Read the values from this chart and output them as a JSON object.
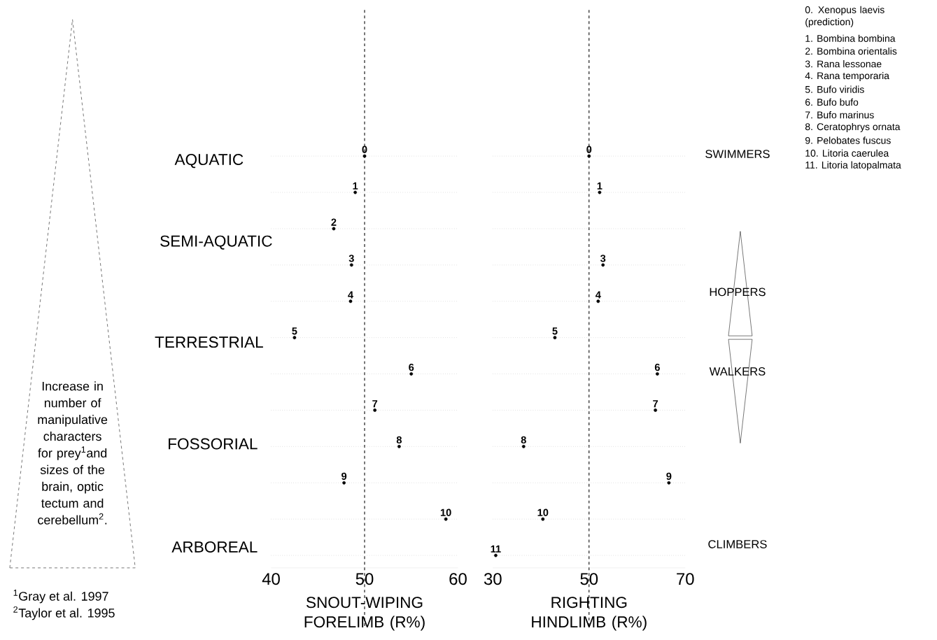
{
  "chart_data": [
    {
      "type": "scatter",
      "orientation": "horizontal",
      "xlabel": "SNOUT-WIPING FORELIMB (R%)",
      "categories": [
        "0",
        "1",
        "2",
        "3",
        "4",
        "5",
        "6",
        "7",
        "8",
        "9",
        "10",
        null
      ],
      "values": [
        50.0,
        49.0,
        46.7,
        48.6,
        48.5,
        42.5,
        55.0,
        51.1,
        53.7,
        47.8,
        58.7,
        null
      ],
      "xlim": [
        40,
        60
      ],
      "xticks": [
        40,
        50,
        60
      ],
      "grid": "y",
      "ref_lines": [
        {
          "axis": "x",
          "value": 50,
          "line_style": "dashed"
        }
      ],
      "annotations": [
        "AQUATIC",
        "SEMI-AQUATIC",
        "TERRESTRIAL",
        "FOSSORIAL",
        "ARBOREAL",
        "Increase in number of manipulative characters for prey$^{1}$and sizes of the brain, optic tectum and cerebellum$^{2}$.",
        "$^{1}$Gray et al. 1997",
        "$^{2}$Taylor et al. 1995",
        "0. Xenopus laevis (prediction)",
        "1. Bombina bombina",
        "2. Bombina orientalis",
        "3. Rana lessonae",
        "4. Rana temporaria",
        "5. Bufo viridis",
        "6. Bufo bufo",
        "7. Bufo marinus",
        "8. Ceratophrys ornata",
        "9. Pelobates fuscus",
        "10. Litoria caerulea",
        "11. Litoria latopalmata"
      ]
    },
    {
      "type": "scatter",
      "orientation": "horizontal",
      "xlabel": "RIGHTING HINDLIMB (R%)",
      "categories": [
        "0",
        "1",
        null,
        "3",
        "4",
        "5",
        "6",
        "7",
        "8",
        "9",
        "10",
        "11"
      ],
      "values": [
        50.0,
        52.2,
        null,
        52.9,
        51.9,
        42.9,
        64.2,
        63.8,
        36.4,
        66.6,
        40.4,
        30.6
      ],
      "xlim": [
        30,
        70
      ],
      "xticks": [
        30,
        50,
        70
      ],
      "grid": "y",
      "ref_lines": [
        {
          "axis": "x",
          "value": 50,
          "line_style": "dashed"
        }
      ],
      "annotations": [
        "SWIMMERS",
        "HOPPERS",
        "WALKERS",
        "CLIMBERS"
      ]
    }
  ]
}
